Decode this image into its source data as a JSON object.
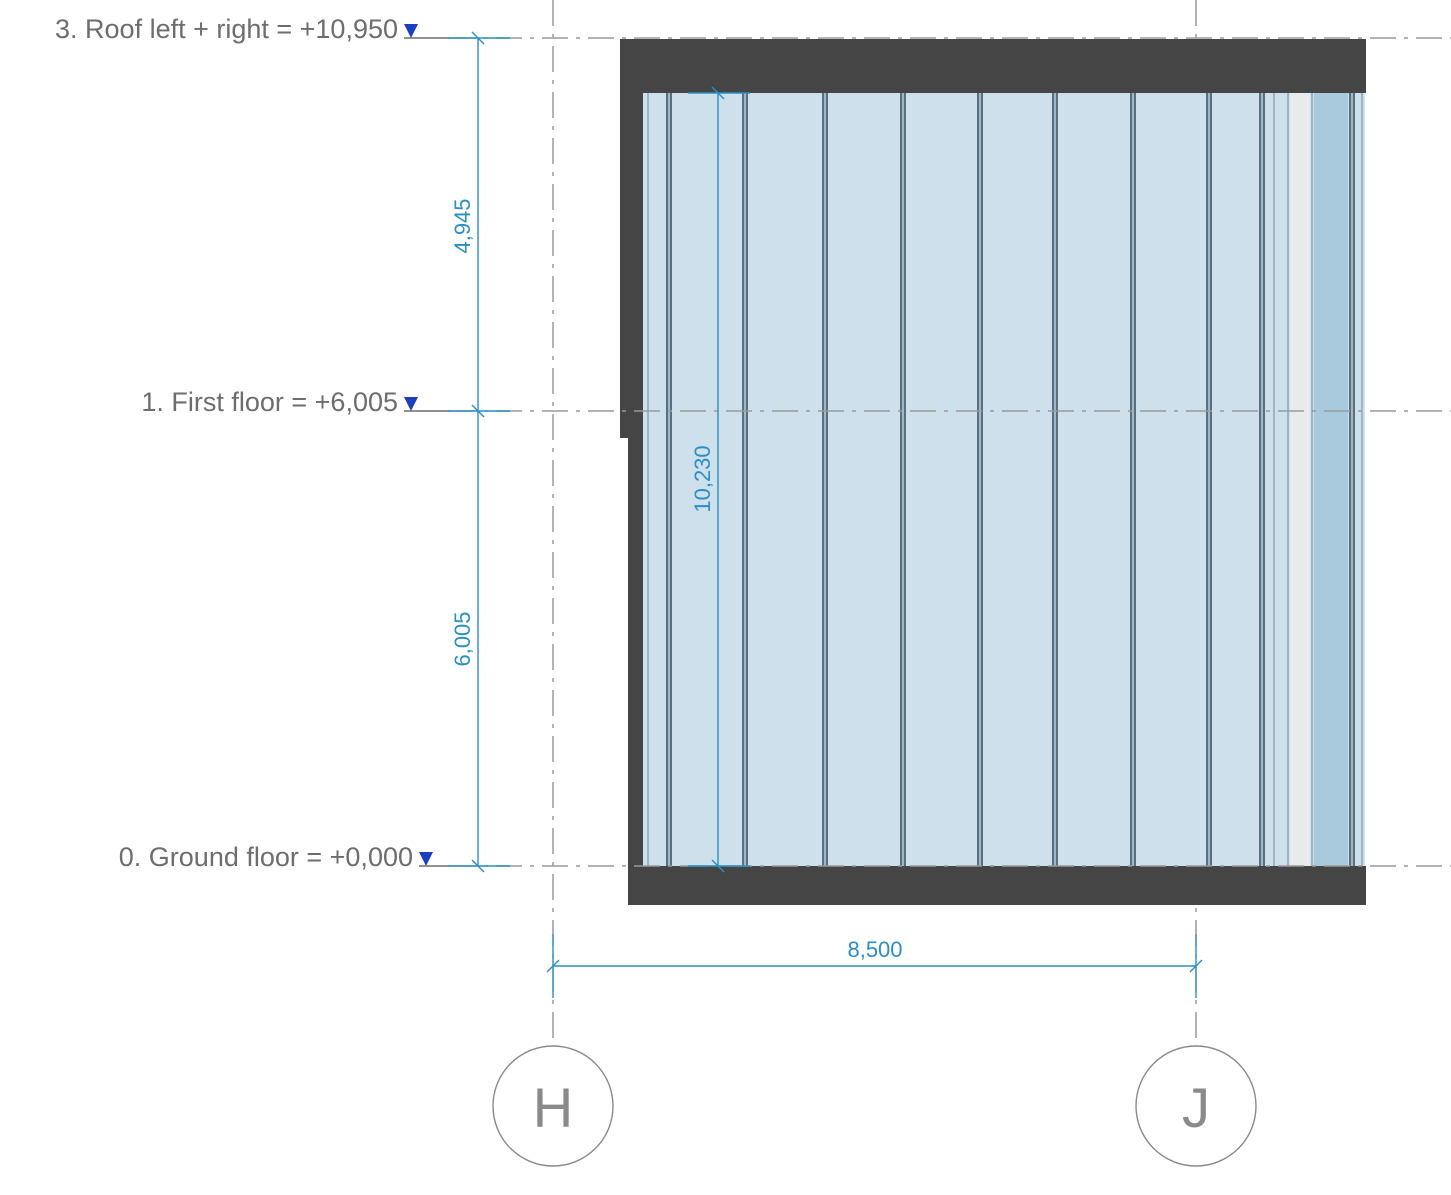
{
  "levels": [
    {
      "label": "3. Roof left + right  =  +10,950"
    },
    {
      "label": "1. First floor  =  +6,005"
    },
    {
      "label": "0. Ground floor  =  +0,000"
    }
  ],
  "dimensions": {
    "upper_height": "4,945",
    "lower_height": "6,005",
    "glazing_height": "10,230",
    "grid_spacing": "8,500"
  },
  "grids": [
    {
      "label": "H"
    },
    {
      "label": "J"
    }
  ],
  "colors": {
    "glass": "#cde0ec",
    "glass_dark": "#a9cadd",
    "frame": "#454545",
    "mullion": "#2c3e48",
    "dimension": "#2a8fc4",
    "level_marker": "#1b3fbf",
    "reference_line": "#999999"
  }
}
